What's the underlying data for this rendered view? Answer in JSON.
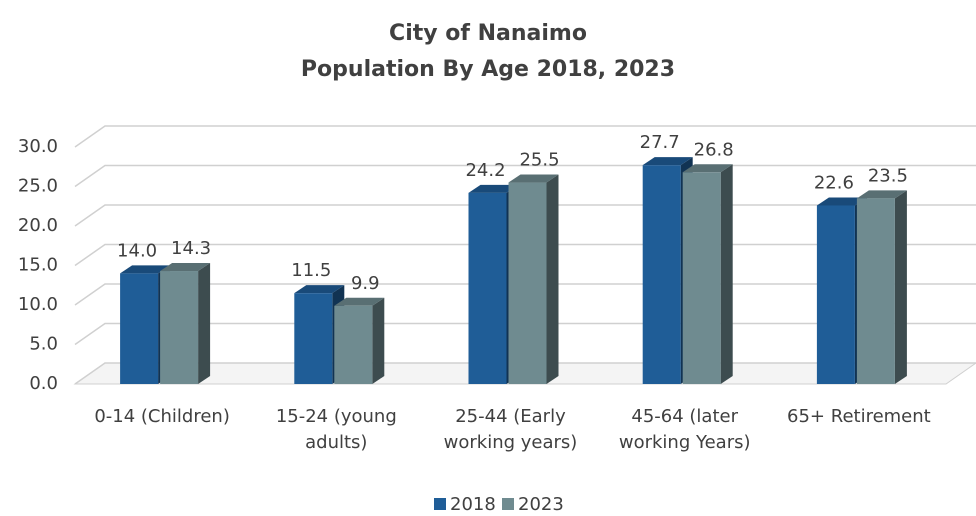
{
  "chart_data": {
    "type": "bar3d",
    "title": "City of Nanaimo",
    "subtitle": "Population By Age 2018, 2023",
    "categories": [
      "0-14 (Children)",
      "15-24 (young adults)",
      "25-44 (Early working years)",
      "45-64 (later working Years)",
      "65+ Retirement"
    ],
    "series": [
      {
        "name": "2018",
        "color": "#1f5d97",
        "values": [
          14.0,
          11.5,
          24.2,
          27.7,
          22.6
        ],
        "value_labels": [
          "14.0",
          "11.5",
          "24.2",
          "27.7",
          "22.6"
        ]
      },
      {
        "name": "2023",
        "color": "#6f8b90",
        "values": [
          14.3,
          9.9,
          25.5,
          26.8,
          23.5
        ],
        "value_labels": [
          "14.3",
          "9.9",
          "25.5",
          "26.8",
          "23.5"
        ]
      }
    ],
    "ylim": [
      0,
      30
    ],
    "yticks": [
      {
        "value": 0,
        "label": "0.0"
      },
      {
        "value": 5,
        "label": "5.0"
      },
      {
        "value": 10,
        "label": "10.0"
      },
      {
        "value": 15,
        "label": "15.0"
      },
      {
        "value": 20,
        "label": "20.0"
      },
      {
        "value": 25,
        "label": "25.0"
      },
      {
        "value": 30,
        "label": "30.0"
      }
    ],
    "grid": true,
    "legend": "bottom"
  }
}
